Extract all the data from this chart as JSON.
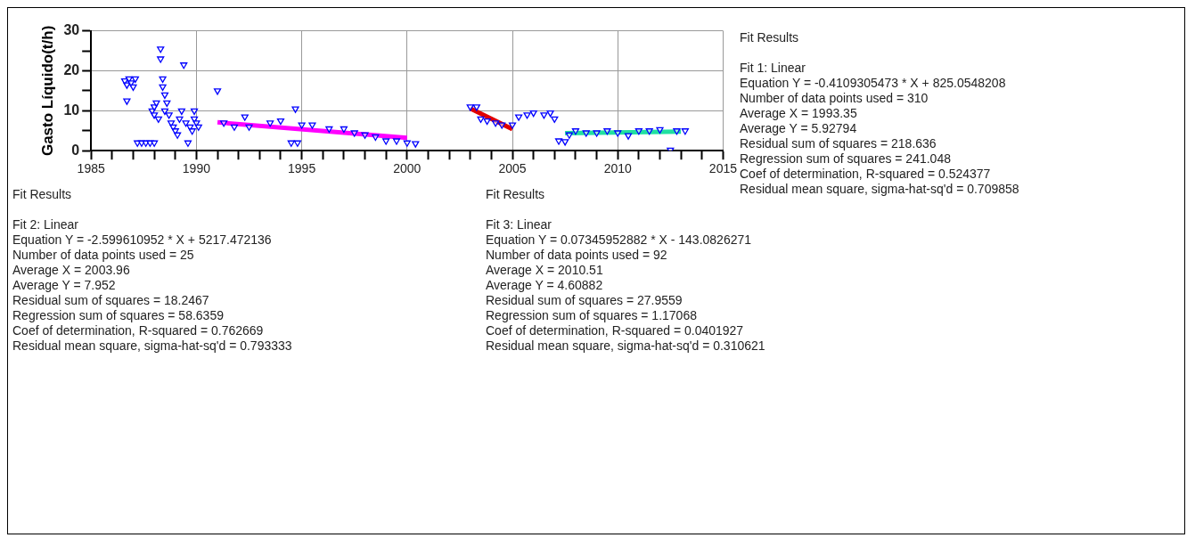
{
  "chart_data": {
    "type": "scatter",
    "ylabel": "Gasto Líquido(t/h)",
    "xlim": [
      1985,
      2015
    ],
    "ylim": [
      0,
      30
    ],
    "xticks": [
      1985,
      {
        "value": 1986,
        "label": null
      },
      {
        "value": 1987,
        "label": null
      },
      {
        "value": 1988,
        "label": null
      },
      {
        "value": 1989,
        "label": null
      },
      1990,
      {
        "value": 1991,
        "label": null
      },
      {
        "value": 1992,
        "label": null
      },
      {
        "value": 1993,
        "label": null
      },
      {
        "value": 1994,
        "label": null
      },
      1995,
      {
        "value": 1996,
        "label": null
      },
      {
        "value": 1997,
        "label": null
      },
      {
        "value": 1998,
        "label": null
      },
      {
        "value": 1999,
        "label": null
      },
      2000,
      {
        "value": 2001,
        "label": null
      },
      {
        "value": 2002,
        "label": null
      },
      {
        "value": 2003,
        "label": null
      },
      {
        "value": 2004,
        "label": null
      },
      2005,
      {
        "value": 2006,
        "label": null
      },
      {
        "value": 2007,
        "label": null
      },
      {
        "value": 2008,
        "label": null
      },
      {
        "value": 2009,
        "label": null
      },
      2010,
      {
        "value": 2011,
        "label": null
      },
      {
        "value": 2012,
        "label": null
      },
      {
        "value": 2013,
        "label": null
      },
      {
        "value": 2014,
        "label": null
      },
      2015
    ],
    "yticks": [
      0,
      {
        "value": 5,
        "label": null
      },
      10,
      {
        "value": 15,
        "label": null
      },
      20,
      {
        "value": 25,
        "label": null
      },
      30
    ],
    "grid": true,
    "legend": false,
    "series": [
      {
        "marker": "triangle",
        "color": "#0000ff",
        "x": [
          1986.6,
          1986.7,
          1986.8,
          1986.9,
          1987,
          1986.7,
          1987.1,
          1987.2,
          1987.4,
          1987.6,
          1987.8,
          1988,
          1987.9,
          1988,
          1988,
          1988.1,
          1988.2,
          1988.3,
          1988.3,
          1988.4,
          1988.4,
          1988.5,
          1988.5,
          1988.6,
          1988.7,
          1988.8,
          1988.9,
          1989,
          1989.1,
          1989.2,
          1989.3,
          1989.4,
          1989.5,
          1989.6,
          1989.7,
          1989.8,
          1989.9,
          1990,
          1990.1,
          1989.9,
          1991,
          1991.3,
          1991.8,
          1992.3,
          1992.5,
          1993.5,
          1994,
          1994.5,
          1994.8,
          1994.7,
          1995,
          1995.5,
          1996.3,
          1997,
          1997.5,
          1998,
          1998.5,
          1999,
          1999.5,
          2000,
          2000.4,
          2003,
          2003.3,
          2003.5,
          2003.8,
          2004.2,
          2004.5,
          2005,
          2005.3,
          2005.7,
          2006,
          2006.5,
          2006.8,
          2007,
          2007.2,
          2007.5,
          2007.7,
          2008,
          2008.5,
          2009,
          2009.5,
          2010,
          2010.5,
          2011,
          2011.5,
          2012,
          2012.5,
          2012.8,
          2013.2
        ],
        "values": [
          17.5,
          16.5,
          18,
          17,
          16,
          12.5,
          18,
          2,
          2,
          2,
          2,
          2,
          10,
          11,
          9,
          12,
          8,
          25.5,
          23,
          18,
          16,
          14,
          10,
          12,
          9,
          7,
          6,
          5,
          4,
          8,
          10,
          21.5,
          7,
          2,
          6,
          5,
          8,
          7,
          6,
          10,
          15,
          7,
          6,
          8.5,
          6,
          7,
          7.5,
          2,
          2,
          10.5,
          6.5,
          6.5,
          5.5,
          5.5,
          4.5,
          4,
          3.5,
          2.5,
          2.5,
          2,
          1.8,
          11,
          11,
          8,
          7.5,
          7,
          6.5,
          6.5,
          8.5,
          9,
          9.5,
          9,
          9.5,
          8,
          2.5,
          2.3,
          4,
          5,
          4.5,
          4.5,
          5,
          4.5,
          3.8,
          5,
          5,
          5.3,
          0.2,
          5,
          5
        ]
      },
      {
        "type": "line",
        "color": "#ff00ff",
        "x": [
          1991,
          2000
        ],
        "values": [
          7.1,
          3.2
        ]
      },
      {
        "type": "line",
        "color": "#e00000",
        "x": [
          2003,
          2005
        ],
        "values": [
          10.6,
          5.4
        ]
      },
      {
        "type": "line",
        "color": "#20e0a0",
        "x": [
          2007.5,
          2013
        ],
        "values": [
          4.4,
          4.8
        ]
      }
    ],
    "annotations": [
      "Fit Results\n\nFit 1: Linear\nEquation Y = -0.4109305473 * X + 825.0548208\nNumber of data points used = 310\nAverage X = 1993.35\nAverage Y = 5.92794\nResidual sum of squares = 218.636\nRegression sum of squares = 241.048\nCoef of determination, R-squared = 0.524377\nResidual mean square, sigma-hat-sq'd = 0.709858",
      "Fit Results\n\nFit 2: Linear\nEquation Y = -2.599610952 * X + 5217.472136\nNumber of data points used = 25\nAverage X = 2003.96\nAverage Y = 7.952\nResidual sum of squares = 18.2467\nRegression sum of squares = 58.6359\nCoef of determination, R-squared = 0.762669\nResidual mean square, sigma-hat-sq'd = 0.793333",
      "Fit Results\n\nFit 3: Linear\nEquation Y = 0.07345952882 * X - 143.0826271\nNumber of data points used = 92\nAverage X = 2010.51\nAverage Y = 4.60882\nResidual sum of squares = 27.9559\nRegression sum of squares = 1.17068\nCoef of determination, R-squared = 0.0401927\nResidual mean square, sigma-hat-sq'd = 0.310621"
    ]
  }
}
